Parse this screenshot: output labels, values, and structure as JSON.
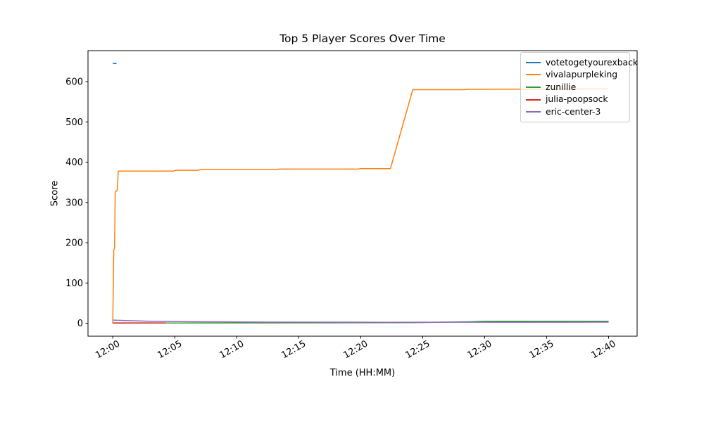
{
  "figure": {
    "background": "#ffffff",
    "axes_color": "#000000",
    "tick_color": "#000000"
  },
  "chart_data": {
    "type": "line",
    "title": "Top 5 Player Scores Over Time",
    "xlabel": "Time (HH:MM)",
    "ylabel": "Score",
    "grid": false,
    "legend_position": "upper right",
    "xlim_minutes": [
      -2,
      42.3
    ],
    "ylim": [
      -32,
      677
    ],
    "y_ticks": [
      0,
      100,
      200,
      300,
      400,
      500,
      600
    ],
    "x_ticks": [
      {
        "min": 0,
        "label": "12:00"
      },
      {
        "min": 5,
        "label": "12:05"
      },
      {
        "min": 10,
        "label": "12:10"
      },
      {
        "min": 15,
        "label": "12:15"
      },
      {
        "min": 20,
        "label": "12:20"
      },
      {
        "min": 25,
        "label": "12:25"
      },
      {
        "min": 30,
        "label": "12:30"
      },
      {
        "min": 35,
        "label": "12:35"
      },
      {
        "min": 40,
        "label": "12:40"
      }
    ],
    "series": [
      {
        "name": "votetogetyourexback",
        "color": "#1f77b4",
        "points": [
          [
            0,
            645
          ],
          [
            0.3,
            645
          ]
        ]
      },
      {
        "name": "vivalapurpleking",
        "color": "#ff7f0e",
        "points": [
          [
            0,
            0
          ],
          [
            0.08,
            182
          ],
          [
            0.14,
            186
          ],
          [
            0.2,
            326
          ],
          [
            0.35,
            330
          ],
          [
            0.45,
            378
          ],
          [
            4.9,
            378
          ],
          [
            5.1,
            380
          ],
          [
            6.9,
            380
          ],
          [
            7.1,
            382
          ],
          [
            13.2,
            382
          ],
          [
            13.4,
            383
          ],
          [
            19.8,
            383
          ],
          [
            20.0,
            384
          ],
          [
            22.4,
            384
          ],
          [
            24.2,
            580
          ],
          [
            28.4,
            580
          ],
          [
            28.6,
            581
          ],
          [
            40,
            582
          ]
        ]
      },
      {
        "name": "zunillie",
        "color": "#2ca02c",
        "points": [
          [
            0,
            0.5
          ],
          [
            12,
            1
          ],
          [
            24,
            1.5
          ],
          [
            29,
            4
          ],
          [
            30,
            5
          ],
          [
            40,
            5
          ]
        ]
      },
      {
        "name": "julia-poopsock",
        "color": "#d62728",
        "points": [
          [
            0,
            1
          ],
          [
            4.3,
            1
          ]
        ]
      },
      {
        "name": "eric-center-3",
        "color": "#9467bd",
        "points": [
          [
            0,
            8
          ],
          [
            1,
            7
          ],
          [
            3,
            5
          ],
          [
            6,
            4
          ],
          [
            13,
            3
          ],
          [
            22,
            2.5
          ],
          [
            40,
            3
          ]
        ]
      }
    ]
  }
}
